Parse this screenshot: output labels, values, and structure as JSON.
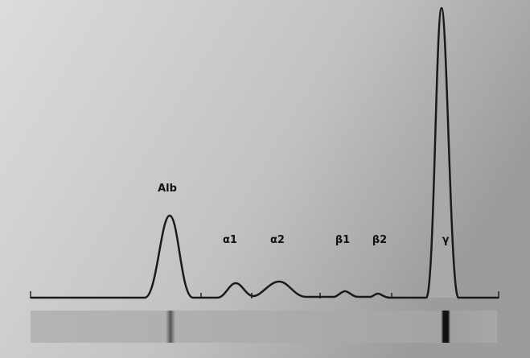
{
  "labels": {
    "alb": "Alb",
    "alpha1": "α1",
    "alpha2": "α2",
    "beta1": "β1",
    "beta2": "β2",
    "gamma": "γ"
  }
}
